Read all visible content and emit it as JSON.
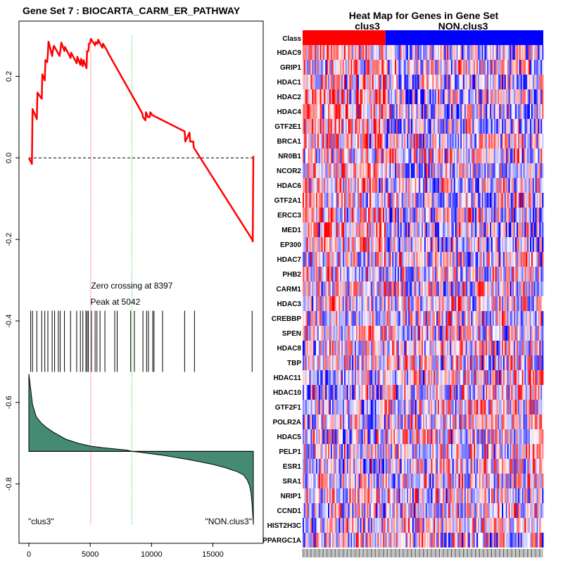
{
  "chart_data": [
    {
      "type": "line",
      "title": "Gene Set  7 : BIOCARTA_CARM_ER_PATHWAY",
      "xlim": [
        0,
        18300
      ],
      "ylim": [
        -0.93,
        0.32
      ],
      "x_ticks": [
        0,
        5000,
        10000,
        15000
      ],
      "x_tick_labels": [
        "0",
        "5000",
        "10000",
        "15000"
      ],
      "y_ticks": [
        0.2,
        0.0,
        -0.2,
        -0.4,
        -0.6,
        -0.8
      ],
      "y_tick_labels": [
        "0.2",
        "0.0",
        "-0.2",
        "-0.4",
        "-0.6",
        "-0.8"
      ],
      "series": [
        {
          "name": "running enrichment score",
          "color": "#ff0000",
          "x": [
            0,
            250,
            300,
            650,
            700,
            1050,
            1100,
            1300,
            1350,
            1500,
            1550,
            1600,
            1650,
            1900,
            1950,
            2000,
            2050,
            2500,
            2550,
            2600,
            2650,
            2900,
            2950,
            3400,
            3450,
            3900,
            3950,
            4200,
            4250,
            4400,
            4450,
            4700,
            4750,
            4850,
            4900,
            5000,
            5050,
            5400,
            5450,
            5600,
            5650,
            6000,
            6050,
            6400,
            6450,
            9250,
            9300,
            9500,
            9550,
            9650,
            9700,
            9850,
            9900,
            10000,
            10050,
            12700,
            12750,
            13100,
            13150,
            13400,
            13450,
            18200,
            18250,
            18300
          ],
          "y": [
            0.0,
            -0.015,
            0.12,
            0.095,
            0.16,
            0.145,
            0.205,
            0.19,
            0.24,
            0.235,
            0.255,
            0.285,
            0.28,
            0.25,
            0.262,
            0.27,
            0.275,
            0.25,
            0.26,
            0.27,
            0.283,
            0.262,
            0.272,
            0.245,
            0.258,
            0.232,
            0.248,
            0.228,
            0.243,
            0.225,
            0.24,
            0.22,
            0.262,
            0.262,
            0.28,
            0.282,
            0.292,
            0.276,
            0.284,
            0.28,
            0.29,
            0.27,
            0.28,
            0.262,
            0.258,
            0.109,
            0.1,
            0.092,
            0.112,
            0.105,
            0.1,
            0.1,
            0.112,
            0.108,
            0.105,
            0.065,
            0.04,
            0.062,
            0.04,
            0.04,
            0.025,
            -0.2,
            -0.205,
            0.005
          ]
        }
      ],
      "baseline": 0.0,
      "peak_line": {
        "x": 5042,
        "label": "Peak at 5042",
        "color": "#ff0000"
      },
      "zero_line": {
        "x": 8397,
        "label": "Zero crossing at 8397",
        "color": "#00bb00"
      },
      "hits": [
        150,
        300,
        650,
        1050,
        1300,
        1550,
        1900,
        2100,
        2400,
        2550,
        2900,
        3400,
        3900,
        4200,
        4400,
        4650,
        4750,
        4850,
        5100,
        5400,
        5550,
        5800,
        6200,
        7000,
        7200,
        8300,
        8600,
        9300,
        9600,
        9750,
        10100,
        10200,
        10900,
        12700,
        13500,
        18200
      ],
      "ranked_metric": {
        "x": [
          0,
          300,
          600,
          1000,
          1500,
          2000,
          3000,
          4000,
          5000,
          6000,
          7000,
          8000,
          8397,
          9000,
          10000,
          11000,
          12000,
          13000,
          14000,
          15000,
          16000,
          17000,
          17500,
          17800,
          18000,
          18100,
          18200,
          18300
        ],
        "y": [
          -0.53,
          -0.605,
          -0.635,
          -0.65,
          -0.663,
          -0.673,
          -0.69,
          -0.7,
          -0.707,
          -0.711,
          -0.714,
          -0.717,
          -0.72,
          -0.722,
          -0.726,
          -0.73,
          -0.735,
          -0.74,
          -0.746,
          -0.752,
          -0.76,
          -0.77,
          -0.778,
          -0.79,
          -0.805,
          -0.82,
          -0.85,
          -0.9
        ],
        "fill_color": "#458b74",
        "zero_level": -0.72
      },
      "class_labels": [
        "\"clus3\"",
        "\"NON.clus3\""
      ]
    },
    {
      "type": "heatmap",
      "title": "Heat Map for Genes in Gene Set",
      "column_classes": {
        "label": "Class",
        "groups": [
          "clus3",
          "NON.clus3"
        ],
        "colors": [
          "#ff0000",
          "#0000ff"
        ],
        "split_fraction": 0.345
      },
      "rows": [
        "HDAC9",
        "GRIP1",
        "HDAC1",
        "HDAC2",
        "HDAC4",
        "GTF2E1",
        "BRCA1",
        "NR0B1",
        "NCOR2",
        "HDAC6",
        "GTF2A1",
        "ERCC3",
        "MED1",
        "EP300",
        "HDAC7",
        "PHB2",
        "CARM1",
        "HDAC3",
        "CREBBP",
        "SPEN",
        "HDAC8",
        "TBP",
        "HDAC11",
        "HDAC10",
        "GTF2F1",
        "POLR2A",
        "HDAC5",
        "PELP1",
        "ESR1",
        "SRA1",
        "NRIP1",
        "CCND1",
        "HIST2H3C",
        "PPARGC1A"
      ],
      "row_bias": [
        0.25,
        0.15,
        0.25,
        0.3,
        0.3,
        0.3,
        0.2,
        0.0,
        0.15,
        0.2,
        0.15,
        0.2,
        0.35,
        0.3,
        0.05,
        0.05,
        -0.05,
        0.0,
        0.05,
        0.05,
        -0.05,
        0.05,
        -0.15,
        -0.15,
        -0.15,
        -0.1,
        -0.1,
        -0.1,
        -0.1,
        -0.05,
        0.05,
        0.0,
        -0.1,
        0.0
      ],
      "color_low": "#0000ff",
      "color_mid": "#ffffff",
      "color_high": "#ff0000"
    }
  ]
}
